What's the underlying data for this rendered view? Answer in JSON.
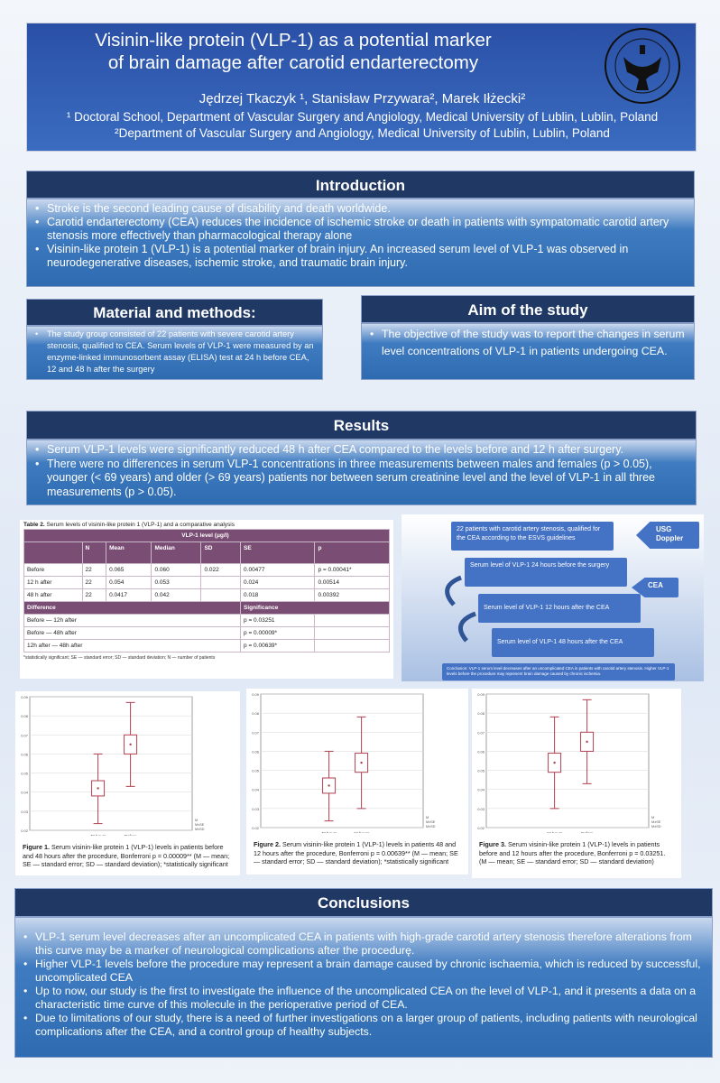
{
  "header": {
    "title_line1": "Visinin-like protein (VLP-1) as a potential marker",
    "title_line2": "of brain damage after carotid endarterectomy",
    "authors": "Jędrzej Tkaczyk ¹, Stanisław Przywara², Marek Iłżecki²",
    "affiliation1": "¹ Doctoral School, Department of Vascular Surgery and Angiology, Medical University of Lublin, Lublin, Poland",
    "affiliation2": "²Department of Vascular Surgery and Angiology, Medical University of Lublin, Lublin, Poland",
    "seal_text": "UNIWERSYTET MEDYCZNY W LUBLINIE"
  },
  "introduction": {
    "title": "Introduction",
    "items": [
      "Stroke is the second leading cause of disability and death worldwide.",
      "Carotid endarterectomy (CEA) reduces the incidence of ischemic stroke or death in patients with sympatomatic carotid artery stenosis more effectively than pharmacological therapy alone",
      "Visinin-like protein 1 (VLP-1) is a potential marker of brain injury. An increased serum level of VLP-1 was observed in neurodegenerative diseases, ischemic stroke, and traumatic brain injury."
    ]
  },
  "methods": {
    "title": "Material and methods:",
    "items": [
      "The study group consisted of 22 patients with severe carotid artery stenosis, qualified to CEA. Serum levels of VLP-1 were measured by an enzyme-linked immunosorbent assay (ELISA) test at 24 h before CEA, 12 and 48 h after the surgery"
    ]
  },
  "aim": {
    "title": "Aim of the study",
    "items": [
      "The objective of the study was to report the changes in serum level concentrations of VLP-1 in patients undergoing CEA."
    ]
  },
  "results": {
    "title": "Results",
    "items": [
      "Serum VLP-1 levels were significantly reduced 48 h after CEA compared to the levels before and 12 h after surgery.",
      "There were no differences in serum VLP-1 concentrations in three measurements between males and females (p > 0.05), younger (< 69 years) and older (> 69 years) patients nor between serum creatinine level and the level of VLP-1 in all three measurements (p > 0.05)."
    ]
  },
  "table": {
    "caption_bold": "Table 2.",
    "caption": " Serum levels of visinin-like protein 1 (VLP-1) and a comparative analysis",
    "group_header": "VLP-1 level (μg/l)",
    "columns": [
      "",
      "N",
      "Mean",
      "Median",
      "SD",
      "SE",
      "p"
    ],
    "rows": [
      [
        "Before",
        "22",
        "0.065",
        "0.060",
        "0.022",
        "0.00477",
        "p = 0.00041*"
      ],
      [
        "12 h after",
        "22",
        "0.054",
        "0.053",
        "",
        "0.024",
        "0.00514"
      ],
      [
        "48 h after",
        "22",
        "0.0417",
        "0.042",
        "",
        "0.018",
        "0.00392"
      ]
    ],
    "diff_header": "Difference",
    "sig_header": "Significance",
    "diffs": [
      [
        "Before — 12h after",
        "p = 0.03251"
      ],
      [
        "Before — 48h after",
        "p = 0.00009*"
      ],
      [
        "12h after — 48h after",
        "p = 0.00639*"
      ]
    ],
    "footnote": "*statistically significant; SE — standard error; SD — standard deviation; N — number of patients"
  },
  "flow": {
    "step1": "22 patients with carotid artery stenosis, qualified for the CEA according to the ESVS guidelines",
    "usg": "USG Doppler",
    "step2": "Serum level of VLP-1 24 hours before the surgery",
    "cea": "CEA",
    "step3": "Serum level of VLP-1 12 hours after the CEA",
    "step4": "Serum level of VLP-1 48 hours after the CEA",
    "conclusion": "Conclusion: VLP-1 serum level decreases after an uncomplicated CEA in patients with carotid artery stenosis. Higher VLP-1 levels before the procedure may represent brain damage caused by chronic ischemia."
  },
  "figures": [
    {
      "caption_bold": "Figure 1.",
      "caption": " Serum visinin-like protein 1 (VLP-1) levels in patients before and 48 hours after the procedure, Bonferroni p = 0.00009** (M — mean; SE — standard error; SD — standard deviation); *statistically significant"
    },
    {
      "caption_bold": "Figure 2.",
      "caption": " Serum visinin-like protein 1 (VLP-1) levels in patients 48 and 12 hours after the procedure, Bonferroni p = 0.00639** (M — mean; SE — standard error; SD — standard deviation); *statistically significant"
    },
    {
      "caption_bold": "Figure 3.",
      "caption": " Serum visinin-like protein 1 (VLP-1) levels in patients before and 12 hours after the procedure, Bonferroni p = 0.03251. (M — mean; SE — standard error; SD — standard deviation)"
    }
  ],
  "chart_data": [
    {
      "type": "box",
      "ylim": [
        0.02,
        0.09
      ],
      "yticks": [
        "0.02",
        "0.03",
        "0.04",
        "0.05",
        "0.06",
        "0.07",
        "0.08",
        "0.09"
      ],
      "legend": [
        "M",
        "M±SE",
        "M±SD"
      ],
      "groups": [
        {
          "label": "48 hours",
          "mean": 0.042,
          "se": [
            0.038,
            0.046
          ],
          "sd": [
            0.0235,
            0.06
          ]
        },
        {
          "label": "Before",
          "mean": 0.065,
          "se": [
            0.06,
            0.07
          ],
          "sd": [
            0.043,
            0.087
          ]
        }
      ]
    },
    {
      "type": "box",
      "ylim": [
        0.02,
        0.09
      ],
      "yticks": [
        "0.02",
        "0.03",
        "0.04",
        "0.05",
        "0.06",
        "0.07",
        "0.08",
        "0.09"
      ],
      "legend": [
        "M",
        "M±SE",
        "M±SD"
      ],
      "groups": [
        {
          "label": "48 hours",
          "mean": 0.042,
          "se": [
            0.038,
            0.046
          ],
          "sd": [
            0.0235,
            0.06
          ]
        },
        {
          "label": "12 hours",
          "mean": 0.054,
          "se": [
            0.049,
            0.059
          ],
          "sd": [
            0.03,
            0.078
          ]
        }
      ]
    },
    {
      "type": "box",
      "ylim": [
        0.02,
        0.09
      ],
      "yticks": [
        "0.02",
        "0.03",
        "0.04",
        "0.05",
        "0.06",
        "0.07",
        "0.08",
        "0.09"
      ],
      "legend": [
        "M",
        "M±SE",
        "M±SD"
      ],
      "groups": [
        {
          "label": "12 hours",
          "mean": 0.054,
          "se": [
            0.049,
            0.059
          ],
          "sd": [
            0.03,
            0.078
          ]
        },
        {
          "label": "Before",
          "mean": 0.065,
          "se": [
            0.06,
            0.07
          ],
          "sd": [
            0.043,
            0.087
          ]
        }
      ]
    }
  ],
  "conclusions": {
    "title": "Conclusions",
    "items": [
      "VLP-1 serum level decreases after an uncomplicated CEA in patients with high-grade carotid artery stenosis therefore alterations from this curve may be a marker of neurological complications after the procedurę.",
      "Higher VLP-1 levels before the procedure may represent a brain damage caused by chronic ischaemia, which is reduced by successful, uncomplicated CEA",
      "Up to now, our study is the first to investigate the influence of the uncomplicated CEA on the level of VLP-1, and it presents a data on a characteristic time curve of this molecule in the perioperative period of CEA.",
      "Due to limitations of our study, there is a need of further investigations on a larger group of patients, including patients with neurological complications after the CEA, and a control group of healthy subjects."
    ]
  }
}
